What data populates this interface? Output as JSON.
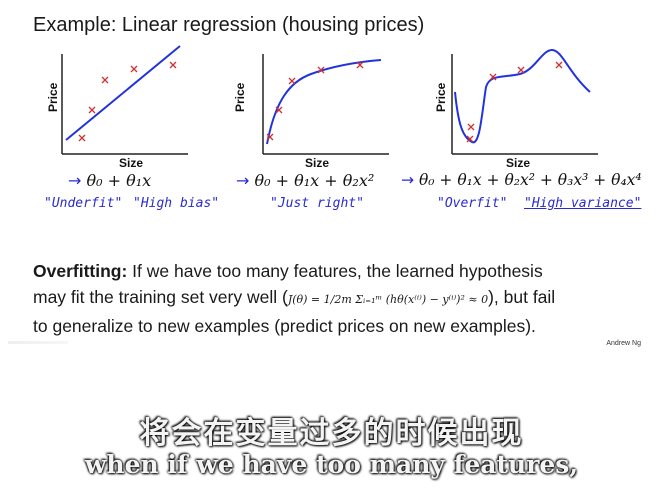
{
  "slide": {
    "title": "Example: Linear regression (housing prices)",
    "credit": "Andrew Ng"
  },
  "plots": [
    {
      "ylabel": "Price",
      "xlabel": "Size",
      "formula_arrow": "→",
      "formula": "θ₀ + θ₁x",
      "note_a": "\"Underfit\"",
      "note_b": "\"High bias\""
    },
    {
      "ylabel": "Price",
      "xlabel": "Size",
      "formula_arrow": "→",
      "formula": "θ₀ + θ₁x + θ₂x²",
      "note_a": "\"Just right\"",
      "note_b": ""
    },
    {
      "ylabel": "Price",
      "xlabel": "Size",
      "formula_arrow": "→",
      "formula": "θ₀ + θ₁x + θ₂x² + θ₃x³ + θ₄x⁴",
      "note_a": "\"Overfit\"",
      "note_b": "\"High variance\""
    }
  ],
  "paragraph": {
    "bold": "Overfitting:",
    "line1": " If we have too many features, the learned hypothesis",
    "line2_pre": "may fit the training set very well (",
    "cost": "J(θ) = 1/2m Σᵢ₌₁ᵐ (hθ(x⁽ⁱ⁾) − y⁽ⁱ⁾)² ≈ 0",
    "line2_post": "), but fail",
    "line3": "to generalize to new examples (predict prices on new examples)."
  },
  "subtitles": {
    "chinese": "将会在变量过多的时候出现",
    "english": "when if we have too many features,"
  },
  "colors": {
    "curve": "#2233dd",
    "marker": "#d03030",
    "handwriting": "#2a2ad0"
  }
}
